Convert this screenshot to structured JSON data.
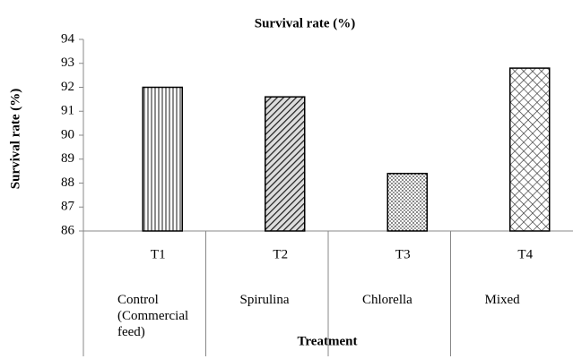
{
  "chart_data": {
    "type": "bar",
    "title": "Survival rate (%)",
    "y_label": "Survival rate (%)",
    "x_label": "Treatment",
    "categories": [
      "T1",
      "T2",
      "T3",
      "T4"
    ],
    "category_descriptions": [
      "Control (Commercial feed)",
      "Spirulina",
      "Chlorella",
      "Mixed"
    ],
    "values": [
      92,
      91.6,
      88.4,
      92.8
    ],
    "ylim": [
      86,
      94
    ],
    "yticks": [
      86,
      87,
      88,
      89,
      90,
      91,
      92,
      93,
      94
    ],
    "grid": false
  }
}
